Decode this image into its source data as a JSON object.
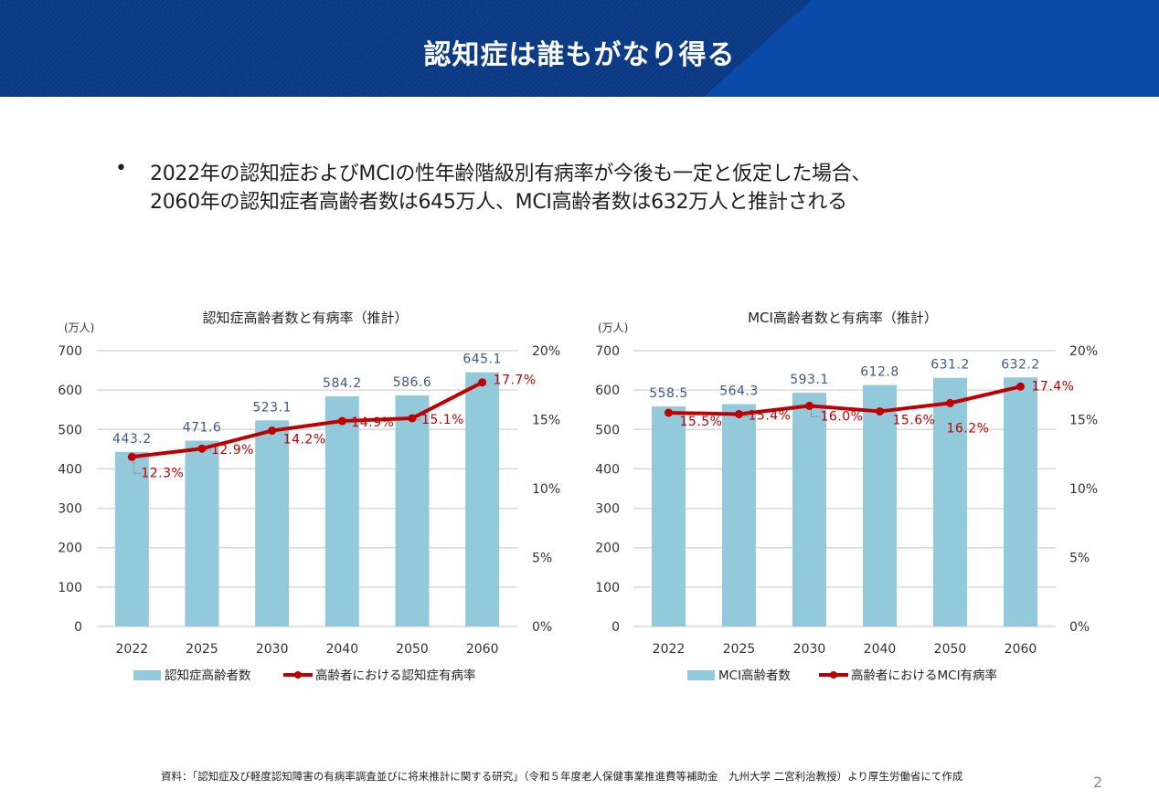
{
  "header": {
    "title": "認知症は誰もがなり得る"
  },
  "lead": {
    "bullet": "•",
    "line1": "2022年の認知症およびMCIの性年齢階級別有病率が今後も一定と仮定した場合、",
    "line2": "2060年の認知症者高齢者数は645万人、MCI高齢者数は632万人と推計される"
  },
  "colors": {
    "bar": "#92cadb",
    "line": "#c00000",
    "bar_label": "#3a5a8a",
    "line_label": "#c00000",
    "grid": "#d9d9d9"
  },
  "footer": {
    "source": "資料：「認知症及び軽度認知障害の有病率調査並びに将来推計に関する研究」（令和５年度老人保健事業推進費等補助金　九州大学 二宮利治教授）より厚生労働省にて作成",
    "page": "2"
  },
  "chart_data": [
    {
      "type": "bar",
      "title": "認知症高齢者数と有病率（推計）",
      "ylabel": "(万人)",
      "categories": [
        "2022",
        "2025",
        "2030",
        "2040",
        "2050",
        "2060"
      ],
      "ylim": [
        0,
        700
      ],
      "yticks": [
        "0",
        "100",
        "200",
        "300",
        "400",
        "500",
        "600",
        "700"
      ],
      "y2lim": [
        0,
        20
      ],
      "y2ticks": [
        "0%",
        "5%",
        "10%",
        "15%",
        "20%"
      ],
      "grid": true,
      "legend_position": "bottom",
      "series": [
        {
          "name": "認知症高齢者数",
          "type": "bar",
          "axis": "left",
          "values": [
            443.2,
            471.6,
            523.1,
            584.2,
            586.6,
            645.1
          ],
          "labels": [
            "443.2",
            "471.6",
            "523.1",
            "584.2",
            "586.6",
            "645.1"
          ]
        },
        {
          "name": "高齢者における認知症有病率",
          "type": "line",
          "axis": "right",
          "values": [
            12.3,
            12.9,
            14.2,
            14.9,
            15.1,
            17.7
          ],
          "labels": [
            "12.3%",
            "12.9%",
            "14.2%",
            "14.9%",
            "15.1%",
            "17.7%"
          ]
        }
      ]
    },
    {
      "type": "bar",
      "title": "MCI高齢者数と有病率（推計）",
      "ylabel": "(万人)",
      "categories": [
        "2022",
        "2025",
        "2030",
        "2040",
        "2050",
        "2060"
      ],
      "ylim": [
        0,
        700
      ],
      "yticks": [
        "0",
        "100",
        "200",
        "300",
        "400",
        "500",
        "600",
        "700"
      ],
      "y2lim": [
        0,
        20
      ],
      "y2ticks": [
        "0%",
        "5%",
        "10%",
        "15%",
        "20%"
      ],
      "grid": true,
      "legend_position": "bottom",
      "series": [
        {
          "name": "MCI高齢者数",
          "type": "bar",
          "axis": "left",
          "values": [
            558.5,
            564.3,
            593.1,
            612.8,
            631.2,
            632.2
          ],
          "labels": [
            "558.5",
            "564.3",
            "593.1",
            "612.8",
            "631.2",
            "632.2"
          ]
        },
        {
          "name": "高齢者におけるMCI有病率",
          "type": "line",
          "axis": "right",
          "values": [
            15.5,
            15.4,
            16.0,
            15.6,
            16.2,
            17.4
          ],
          "labels": [
            "15.5%",
            "15.4%",
            "16.0%",
            "15.6%",
            "16.2%",
            "17.4%"
          ]
        }
      ]
    }
  ]
}
